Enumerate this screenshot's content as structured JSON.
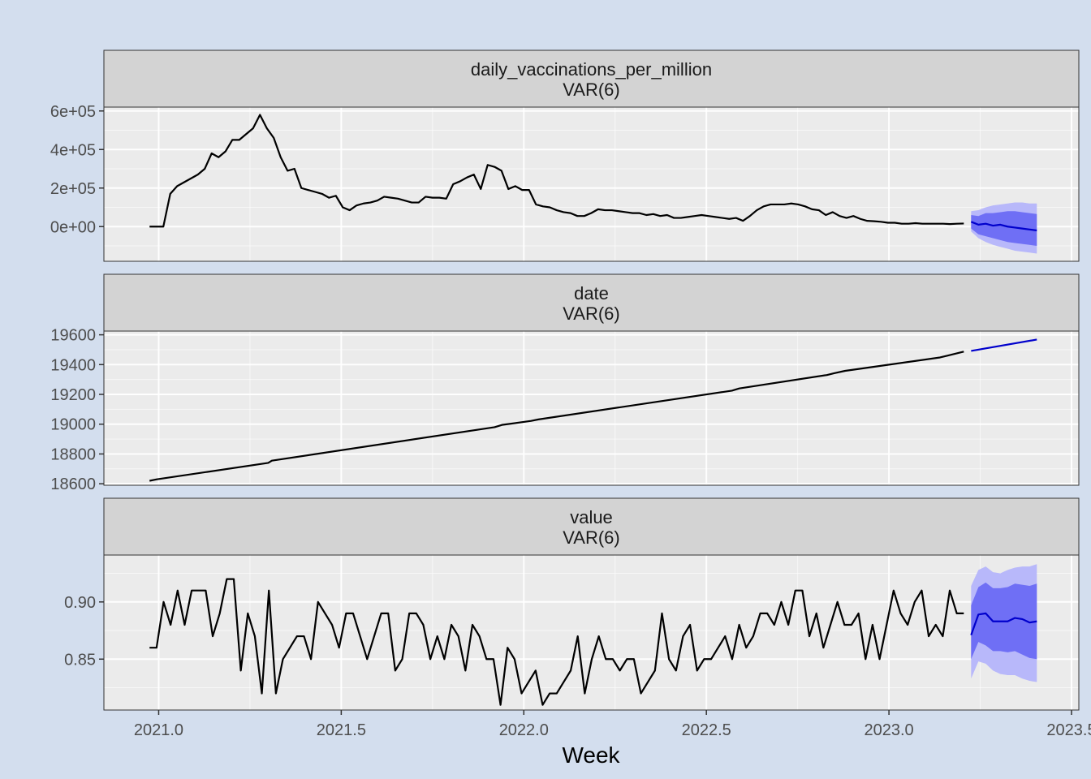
{
  "chart_data": {
    "type": "line",
    "xlabel": "Week",
    "x_ticks": [
      "2021.0",
      "2021.5",
      "2022.0",
      "2022.5",
      "2023.0",
      "2023.5"
    ],
    "xlim": [
      2020.85,
      2023.52
    ],
    "colors": {
      "background": "#d3deee",
      "panel": "#ebebeb",
      "strip": "#d3d3d3",
      "history": "#000000",
      "forecast": "#0000cc",
      "interval_80": "#6f6ff5",
      "interval_95": "#b8b8fa"
    },
    "panels": [
      {
        "strip": [
          "daily_vaccinations_per_million",
          "VAR(6)"
        ],
        "ylim": [
          -180000,
          620000
        ],
        "y_ticks": [
          {
            "value": 0,
            "label": "0e+00"
          },
          {
            "value": 200000,
            "label": "2e+05"
          },
          {
            "value": 400000,
            "label": "4e+05"
          },
          {
            "value": 600000,
            "label": "6e+05"
          }
        ],
        "history": {
          "x_start": 2020.975,
          "x_end": 2023.205,
          "values": [
            0,
            0,
            0,
            170000,
            210000,
            230000,
            250000,
            270000,
            300000,
            380000,
            360000,
            390000,
            450000,
            450000,
            480000,
            510000,
            580000,
            510000,
            460000,
            360000,
            290000,
            300000,
            200000,
            190000,
            180000,
            170000,
            150000,
            160000,
            100000,
            85000,
            110000,
            120000,
            125000,
            135000,
            155000,
            150000,
            145000,
            135000,
            125000,
            125000,
            155000,
            150000,
            150000,
            145000,
            220000,
            235000,
            255000,
            270000,
            195000,
            320000,
            310000,
            290000,
            195000,
            210000,
            190000,
            190000,
            115000,
            105000,
            100000,
            85000,
            75000,
            70000,
            55000,
            55000,
            70000,
            90000,
            85000,
            85000,
            80000,
            75000,
            70000,
            70000,
            60000,
            65000,
            55000,
            60000,
            45000,
            45000,
            50000,
            55000,
            60000,
            55000,
            50000,
            45000,
            40000,
            45000,
            30000,
            55000,
            85000,
            105000,
            115000,
            115000,
            115000,
            120000,
            115000,
            105000,
            90000,
            85000,
            60000,
            75000,
            55000,
            45000,
            55000,
            40000,
            30000,
            28000,
            25000,
            20000,
            20000,
            15000,
            15000,
            18000,
            15000,
            15000,
            15000,
            15000,
            13000,
            15000,
            16000
          ]
        },
        "forecast": {
          "x": [
            2023.225,
            2023.245,
            2023.265,
            2023.285,
            2023.305,
            2023.325,
            2023.345,
            2023.365,
            2023.385,
            2023.405
          ],
          "mean": [
            25000,
            10000,
            15000,
            5000,
            10000,
            0,
            -5000,
            -10000,
            -15000,
            -20000
          ],
          "lo80": [
            -10000,
            -40000,
            -50000,
            -60000,
            -70000,
            -80000,
            -85000,
            -90000,
            -95000,
            -100000
          ],
          "hi80": [
            60000,
            55000,
            70000,
            70000,
            75000,
            80000,
            80000,
            75000,
            70000,
            65000
          ],
          "lo95": [
            -25000,
            -60000,
            -80000,
            -95000,
            -105000,
            -115000,
            -125000,
            -130000,
            -135000,
            -140000
          ],
          "hi95": [
            80000,
            85000,
            100000,
            110000,
            115000,
            120000,
            125000,
            125000,
            120000,
            120000
          ]
        }
      },
      {
        "strip": [
          "date",
          "VAR(6)"
        ],
        "ylim": [
          18590,
          19625
        ],
        "y_ticks": [
          {
            "value": 18600,
            "label": "18600"
          },
          {
            "value": 18800,
            "label": "18800"
          },
          {
            "value": 19000,
            "label": "19000"
          },
          {
            "value": 19200,
            "label": "19200"
          },
          {
            "value": 19400,
            "label": "19400"
          },
          {
            "value": 19600,
            "label": "19600"
          }
        ],
        "history": {
          "x": [
            2020.975,
            2020.995,
            2021.3,
            2021.31,
            2021.92,
            2021.94,
            2022.02,
            2022.04,
            2022.57,
            2022.59,
            2022.83,
            2022.85,
            2022.88,
            2022.9,
            2023.14,
            2023.16,
            2023.205
          ],
          "values": [
            18620,
            18630,
            18740,
            18755,
            18980,
            18995,
            19022,
            19032,
            19225,
            19240,
            19330,
            19342,
            19358,
            19365,
            19448,
            19460,
            19487
          ]
        },
        "forecast": {
          "x": [
            2023.225,
            2023.405
          ],
          "mean": [
            19492,
            19568
          ]
        }
      },
      {
        "strip": [
          "value",
          "VAR(6)"
        ],
        "ylim": [
          0.8055,
          0.941
        ],
        "y_ticks": [
          {
            "value": 0.85,
            "label": "0.85"
          },
          {
            "value": 0.9,
            "label": "0.90"
          }
        ],
        "history": {
          "x_start": 2020.975,
          "x_end": 2023.205,
          "values": [
            0.86,
            0.86,
            0.9,
            0.88,
            0.91,
            0.88,
            0.91,
            0.91,
            0.91,
            0.87,
            0.89,
            0.92,
            0.92,
            0.84,
            0.89,
            0.87,
            0.82,
            0.91,
            0.82,
            0.85,
            0.86,
            0.87,
            0.87,
            0.85,
            0.9,
            0.89,
            0.88,
            0.86,
            0.89,
            0.89,
            0.87,
            0.85,
            0.87,
            0.89,
            0.89,
            0.84,
            0.85,
            0.89,
            0.89,
            0.88,
            0.85,
            0.87,
            0.85,
            0.88,
            0.87,
            0.84,
            0.88,
            0.87,
            0.85,
            0.85,
            0.81,
            0.86,
            0.85,
            0.82,
            0.83,
            0.84,
            0.81,
            0.82,
            0.82,
            0.83,
            0.84,
            0.87,
            0.82,
            0.85,
            0.87,
            0.85,
            0.85,
            0.84,
            0.85,
            0.85,
            0.82,
            0.83,
            0.84,
            0.89,
            0.85,
            0.84,
            0.87,
            0.88,
            0.84,
            0.85,
            0.85,
            0.86,
            0.87,
            0.85,
            0.88,
            0.86,
            0.87,
            0.89,
            0.89,
            0.88,
            0.9,
            0.88,
            0.91,
            0.91,
            0.87,
            0.89,
            0.86,
            0.88,
            0.9,
            0.88,
            0.88,
            0.89,
            0.85,
            0.88,
            0.85,
            0.88,
            0.91,
            0.89,
            0.88,
            0.9,
            0.91,
            0.87,
            0.88,
            0.87,
            0.91,
            0.89,
            0.89
          ]
        },
        "forecast": {
          "x": [
            2023.225,
            2023.245,
            2023.265,
            2023.285,
            2023.305,
            2023.325,
            2023.345,
            2023.365,
            2023.385,
            2023.405
          ],
          "mean": [
            0.871,
            0.889,
            0.89,
            0.883,
            0.883,
            0.883,
            0.886,
            0.885,
            0.882,
            0.883
          ],
          "lo80": [
            0.85,
            0.865,
            0.862,
            0.857,
            0.857,
            0.856,
            0.857,
            0.854,
            0.851,
            0.85
          ],
          "hi80": [
            0.897,
            0.913,
            0.917,
            0.912,
            0.912,
            0.913,
            0.916,
            0.915,
            0.914,
            0.916
          ],
          "lo95": [
            0.833,
            0.848,
            0.846,
            0.84,
            0.837,
            0.836,
            0.836,
            0.833,
            0.831,
            0.83
          ],
          "hi95": [
            0.914,
            0.928,
            0.931,
            0.926,
            0.925,
            0.928,
            0.93,
            0.931,
            0.931,
            0.933
          ]
        }
      }
    ]
  }
}
